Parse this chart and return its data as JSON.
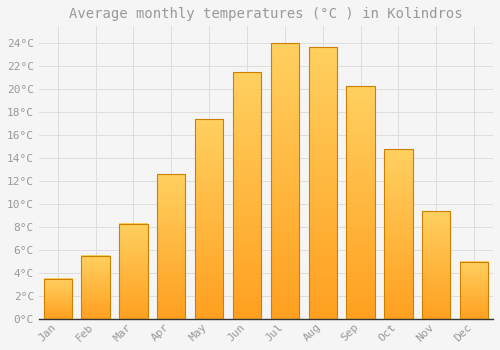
{
  "title": "Average monthly temperatures (°C ) in Kolindros",
  "months": [
    "Jan",
    "Feb",
    "Mar",
    "Apr",
    "May",
    "Jun",
    "Jul",
    "Aug",
    "Sep",
    "Oct",
    "Nov",
    "Dec"
  ],
  "temperatures": [
    3.5,
    5.5,
    8.3,
    12.6,
    17.4,
    21.5,
    24.0,
    23.7,
    20.3,
    14.8,
    9.4,
    5.0
  ],
  "bar_color_top": "#FFD060",
  "bar_color_bottom": "#FFA020",
  "bar_edge_color": "#CC8000",
  "background_color": "#F5F5F5",
  "plot_bg_color": "#F5F5F5",
  "grid_color": "#DDDDDD",
  "text_color": "#999999",
  "axis_color": "#333333",
  "ylim": [
    0,
    25.5
  ],
  "yticks": [
    0,
    2,
    4,
    6,
    8,
    10,
    12,
    14,
    16,
    18,
    20,
    22,
    24
  ],
  "title_fontsize": 10,
  "tick_fontsize": 8,
  "bar_width": 0.75
}
